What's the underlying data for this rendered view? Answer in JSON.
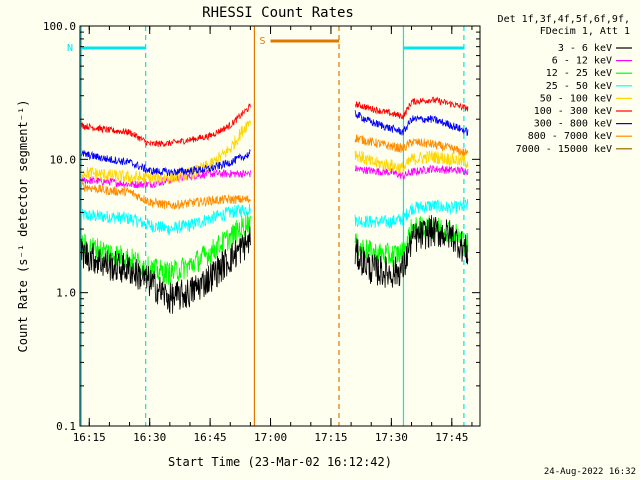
{
  "chart_data": {
    "type": "line",
    "title": "RHESSI Count Rates",
    "xlabel": "Start Time (23-Mar-02 16:12:42)",
    "ylabel": "Count Rate (s⁻¹ detector segment⁻¹)",
    "yscale": "log",
    "ylim": [
      0.1,
      100.0
    ],
    "xlim": [
      "16:12:42",
      "17:52:00"
    ],
    "x_ticks": [
      "16:15",
      "16:30",
      "16:45",
      "17:00",
      "17:15",
      "17:30",
      "17:45"
    ],
    "y_ticks": [
      "0.1",
      "1.0",
      "10.0",
      "100.0"
    ],
    "data_gap": [
      "16:55",
      "17:21"
    ],
    "legend": {
      "placement": "right",
      "header": [
        "Det 1f,3f,4f,5f,6f,9f,",
        "FDecim 1, Att 1"
      ]
    },
    "series": [
      {
        "name": "3 - 6 keV",
        "color": "#000000",
        "segment1": {
          "x": [
            "16:13",
            "16:20",
            "16:25",
            "16:30",
            "16:35",
            "16:40",
            "16:45",
            "16:50",
            "16:55"
          ],
          "y": [
            2.0,
            1.6,
            1.5,
            1.2,
            0.9,
            1.0,
            1.3,
            1.8,
            2.5
          ]
        },
        "segment2": {
          "x": [
            "17:21",
            "17:25",
            "17:30",
            "17:33",
            "17:35",
            "17:40",
            "17:45",
            "17:49"
          ],
          "y": [
            2.0,
            1.5,
            1.4,
            1.5,
            2.5,
            2.9,
            2.7,
            2.0
          ]
        }
      },
      {
        "name": "6 - 12 keV",
        "color": "#ff00ff",
        "segment1": {
          "x": [
            "16:13",
            "16:20",
            "16:25",
            "16:30",
            "16:35",
            "16:40",
            "16:45",
            "16:50",
            "16:55"
          ],
          "y": [
            7.0,
            6.8,
            6.5,
            6.5,
            7.0,
            7.5,
            7.8,
            7.8,
            7.8
          ]
        },
        "segment2": {
          "x": [
            "17:21",
            "17:25",
            "17:30",
            "17:33",
            "17:35",
            "17:40",
            "17:45",
            "17:49"
          ],
          "y": [
            8.5,
            8.2,
            8.0,
            7.5,
            8.0,
            8.5,
            8.3,
            8.2
          ]
        }
      },
      {
        "name": "12 - 25 keV",
        "color": "#00ff00",
        "segment1": {
          "x": [
            "16:13",
            "16:20",
            "16:25",
            "16:30",
            "16:35",
            "16:40",
            "16:45",
            "16:50",
            "16:55"
          ],
          "y": [
            2.3,
            2.0,
            1.8,
            1.5,
            1.4,
            1.6,
            2.0,
            2.6,
            3.5
          ]
        },
        "segment2": {
          "x": [
            "17:21",
            "17:25",
            "17:30",
            "17:33",
            "17:35",
            "17:40",
            "17:45",
            "17:49"
          ],
          "y": [
            2.3,
            2.0,
            1.9,
            2.0,
            3.0,
            3.1,
            2.9,
            2.3
          ]
        }
      },
      {
        "name": "25 - 50 keV",
        "color": "#00ffff",
        "segment1": {
          "x": [
            "16:13",
            "16:20",
            "16:25",
            "16:30",
            "16:35",
            "16:40",
            "16:45",
            "16:50",
            "16:55"
          ],
          "y": [
            3.8,
            3.7,
            3.6,
            3.2,
            3.0,
            3.2,
            3.6,
            4.0,
            4.3
          ]
        },
        "segment2": {
          "x": [
            "17:21",
            "17:25",
            "17:30",
            "17:33",
            "17:35",
            "17:40",
            "17:45",
            "17:49"
          ],
          "y": [
            3.5,
            3.4,
            3.4,
            3.6,
            4.3,
            4.5,
            4.3,
            4.5
          ]
        }
      },
      {
        "name": "50 - 100 keV",
        "color": "#ffd700",
        "segment1": {
          "x": [
            "16:13",
            "16:20",
            "16:25",
            "16:30",
            "16:35",
            "16:40",
            "16:45",
            "16:50",
            "16:55"
          ],
          "y": [
            8.0,
            7.6,
            7.3,
            7.2,
            7.3,
            7.8,
            9.0,
            12.0,
            20.0
          ]
        },
        "segment2": {
          "x": [
            "17:21",
            "17:25",
            "17:30",
            "17:33",
            "17:35",
            "17:40",
            "17:45",
            "17:49"
          ],
          "y": [
            11.0,
            9.5,
            9.0,
            8.5,
            10.0,
            10.5,
            10.0,
            9.5
          ]
        }
      },
      {
        "name": "100 - 300 keV",
        "color": "#ff0000",
        "segment1": {
          "x": [
            "16:13",
            "16:20",
            "16:25",
            "16:30",
            "16:35",
            "16:40",
            "16:45",
            "16:50",
            "16:55"
          ],
          "y": [
            18.0,
            16.5,
            16.0,
            13.0,
            13.2,
            14.0,
            15.0,
            18.0,
            25.0
          ]
        },
        "segment2": {
          "x": [
            "17:21",
            "17:25",
            "17:30",
            "17:33",
            "17:35",
            "17:40",
            "17:45",
            "17:49"
          ],
          "y": [
            26.0,
            24.0,
            22.0,
            21.0,
            27.0,
            28.0,
            26.0,
            24.0
          ]
        }
      },
      {
        "name": "300 - 800 keV",
        "color": "#0000ff",
        "segment1": {
          "x": [
            "16:13",
            "16:20",
            "16:25",
            "16:30",
            "16:35",
            "16:40",
            "16:45",
            "16:50",
            "16:55"
          ],
          "y": [
            11.0,
            10.0,
            9.5,
            8.2,
            8.0,
            8.2,
            8.5,
            9.5,
            11.0
          ]
        },
        "segment2": {
          "x": [
            "17:21",
            "17:25",
            "17:30",
            "17:33",
            "17:35",
            "17:40",
            "17:45",
            "17:49"
          ],
          "y": [
            22.0,
            19.0,
            17.0,
            16.0,
            20.0,
            20.0,
            18.0,
            16.0
          ]
        }
      },
      {
        "name": "800 - 7000 keV",
        "color": "#ff8c00",
        "segment1": {
          "x": [
            "16:13",
            "16:20",
            "16:25",
            "16:30",
            "16:35",
            "16:40",
            "16:45",
            "16:50",
            "16:55"
          ],
          "y": [
            6.3,
            5.8,
            5.7,
            4.8,
            4.5,
            4.7,
            4.9,
            5.0,
            5.0
          ]
        },
        "segment2": {
          "x": [
            "17:21",
            "17:25",
            "17:30",
            "17:33",
            "17:35",
            "17:40",
            "17:45",
            "17:49"
          ],
          "y": [
            14.5,
            13.5,
            12.5,
            12.0,
            13.5,
            13.0,
            12.0,
            11.0
          ]
        }
      },
      {
        "name": "7000 - 15000 keV",
        "color": "#996600",
        "segment1": {
          "x": [],
          "y": []
        },
        "segment2": {
          "x": [],
          "y": []
        }
      }
    ],
    "flags": [
      {
        "label": "N",
        "color": "#00e5ee",
        "intervals": [
          [
            "16:13",
            "16:29"
          ],
          [
            "17:33",
            "17:48"
          ]
        ],
        "boundaries_solid": [
          "16:13",
          "17:33"
        ],
        "boundaries_dashed": [
          "16:29",
          "17:48"
        ]
      },
      {
        "label": "S",
        "color": "#e07800",
        "intervals": [
          [
            "17:00",
            "17:17"
          ]
        ],
        "boundaries_solid": [
          "16:56"
        ],
        "boundaries_dashed": [
          "17:17"
        ]
      }
    ]
  },
  "footer_timestamp": "24-Aug-2022 16:32"
}
